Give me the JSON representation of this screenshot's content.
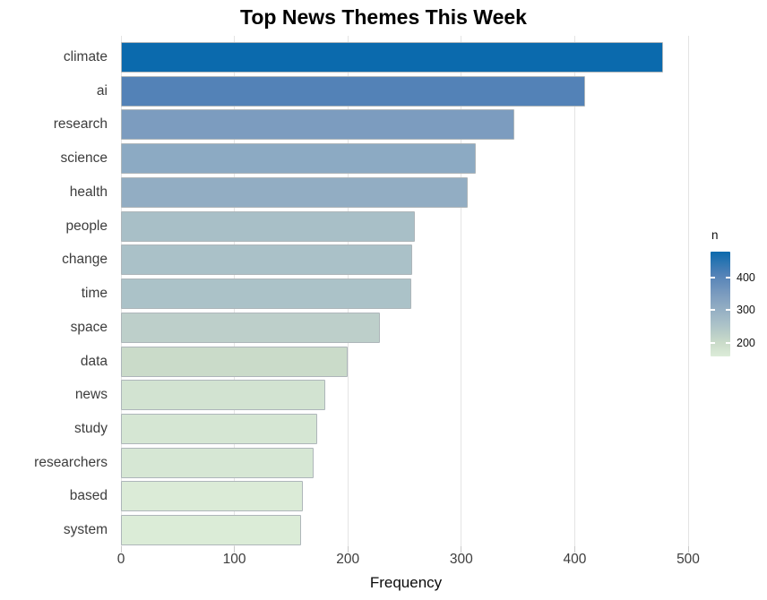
{
  "title": "Top News Themes This Week",
  "chart_data": {
    "type": "bar",
    "orientation": "horizontal",
    "title": "Top News Themes This Week",
    "xlabel": "Frequency",
    "ylabel": "",
    "xlim": [
      0,
      500
    ],
    "x_ticks": [
      "0",
      "100",
      "200",
      "300",
      "400",
      "500"
    ],
    "x_tick_values": [
      0,
      100,
      200,
      300,
      400,
      500
    ],
    "grid": true,
    "background": "#ffffff",
    "gridline_color": "#e4e4e4",
    "bar_border_color": "#aeb6ba",
    "categories": [
      "climate",
      "ai",
      "research",
      "science",
      "health",
      "people",
      "change",
      "time",
      "space",
      "data",
      "news",
      "study",
      "researchers",
      "based",
      "system"
    ],
    "values": [
      478,
      409,
      347,
      313,
      306,
      259,
      257,
      256,
      228,
      200,
      180,
      173,
      170,
      160,
      159
    ],
    "bar_colors": [
      "#0b6aad",
      "#5382b7",
      "#7c9cbf",
      "#8caac3",
      "#92adc3",
      "#a8bfc7",
      "#aac1c8",
      "#abc2c8",
      "#bdcfca",
      "#cadbc9",
      "#d2e3d1",
      "#d5e6d3",
      "#d6e7d4",
      "#dbebd7",
      "#dbecd7"
    ],
    "legend": {
      "title": "n",
      "position": "right",
      "tick_labels": [
        "400",
        "300",
        "200"
      ],
      "tick_values": [
        400,
        300,
        200
      ],
      "domain": [
        159,
        478
      ],
      "gradient_stops": [
        {
          "color": "#0b6aad",
          "pos": 0
        },
        {
          "color": "#5382b7",
          "pos": 0.22
        },
        {
          "color": "#7c9cbf",
          "pos": 0.41
        },
        {
          "color": "#92adc3",
          "pos": 0.54
        },
        {
          "color": "#aac1c8",
          "pos": 0.69
        },
        {
          "color": "#cadbc9",
          "pos": 0.87
        },
        {
          "color": "#dcecd8",
          "pos": 1
        }
      ]
    }
  }
}
